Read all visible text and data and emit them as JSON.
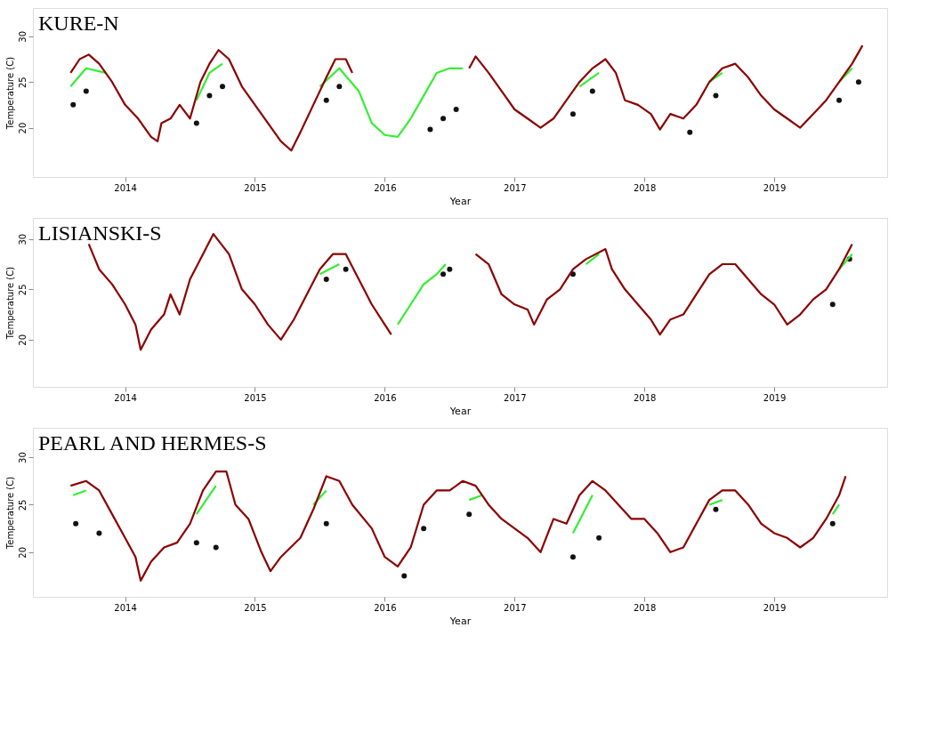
{
  "chart_data": [
    {
      "type": "line",
      "title": "KURE-N",
      "xlabel": "Year",
      "ylabel": "Temperature (C)",
      "xlim": [
        2013.29,
        2019.87
      ],
      "xticks": [
        2014,
        2015,
        2016,
        2017,
        2018,
        2019
      ],
      "ylim": [
        14.6,
        33.1
      ],
      "yticks": [
        20,
        25,
        30
      ],
      "grid": false,
      "legend": false,
      "series": [
        {
          "type": "scatter",
          "marker": "circle",
          "color": "#111111",
          "x": [
            2013.6,
            2013.7,
            2014.55,
            2014.65,
            2014.75,
            2015.55,
            2015.65,
            2016.35,
            2016.45,
            2016.55,
            2017.45,
            2017.6,
            2018.35,
            2018.55,
            2019.5,
            2019.65
          ],
          "values": [
            22.5,
            24,
            20.5,
            23.5,
            24.5,
            23,
            24.5,
            19.8,
            21,
            22,
            21.5,
            24,
            19.5,
            23.5,
            23,
            25
          ]
        },
        {
          "type": "line",
          "color": "#33ee33",
          "x": [
            2013.58,
            2013.7,
            2013.85,
            2014.2,
            2014.55,
            2014.65,
            2014.75,
            2015.1,
            2015.5,
            2015.65,
            2015.8,
            2015.9,
            2016.0,
            2016.1,
            2016.2,
            2016.3,
            2016.4,
            2016.5,
            2016.6,
            2017.0,
            2017.5,
            2017.65,
            2018.0,
            2018.5,
            2018.6,
            2019.0,
            2019.5,
            2019.6
          ],
          "values": [
            24.5,
            26.5,
            26,
            null,
            23,
            26,
            27,
            null,
            24.5,
            26.5,
            24,
            20.5,
            19.2,
            19,
            21,
            23.5,
            26,
            26.5,
            26.5,
            null,
            24.5,
            26,
            null,
            25,
            26,
            null,
            25,
            26.5
          ]
        },
        {
          "type": "line",
          "color": "#8b0000",
          "x": [
            2013.58,
            2013.65,
            2013.72,
            2013.8,
            2013.9,
            2014.0,
            2014.1,
            2014.2,
            2014.25,
            2014.28,
            2014.35,
            2014.42,
            2014.5,
            2014.58,
            2014.65,
            2014.72,
            2014.8,
            2014.9,
            2015.0,
            2015.1,
            2015.2,
            2015.28,
            2015.35,
            2015.45,
            2015.55,
            2015.62,
            2015.7,
            2015.75,
            2016.2,
            2016.65,
            2016.7,
            2016.8,
            2016.9,
            2017.0,
            2017.1,
            2017.2,
            2017.3,
            2017.4,
            2017.5,
            2017.6,
            2017.7,
            2017.78,
            2017.85,
            2017.95,
            2018.05,
            2018.12,
            2018.2,
            2018.3,
            2018.4,
            2018.5,
            2018.6,
            2018.7,
            2018.8,
            2018.9,
            2019.0,
            2019.1,
            2019.2,
            2019.3,
            2019.4,
            2019.5,
            2019.6,
            2019.68
          ],
          "values": [
            26,
            27.5,
            28,
            27,
            25,
            22.5,
            21,
            19,
            18.5,
            20.5,
            21,
            22.5,
            21,
            25,
            27,
            28.5,
            27.5,
            24.5,
            22.5,
            20.5,
            18.5,
            17.5,
            19.5,
            22.5,
            25.5,
            27.5,
            27.5,
            26,
            null,
            26.5,
            27.8,
            26,
            24,
            22,
            21,
            20,
            21,
            23,
            25,
            26.5,
            27.5,
            26,
            23,
            22.5,
            21.5,
            19.8,
            21.5,
            21,
            22.5,
            25,
            26.5,
            27,
            25.5,
            23.5,
            22,
            21,
            20,
            21.5,
            23,
            25,
            27,
            29
          ]
        }
      ]
    },
    {
      "type": "line",
      "title": "LISIANSKI-S",
      "xlabel": "Year",
      "ylabel": "Temperature (C)",
      "xlim": [
        2013.29,
        2019.87
      ],
      "xticks": [
        2014,
        2015,
        2016,
        2017,
        2018,
        2019
      ],
      "ylim": [
        15.3,
        32.1
      ],
      "yticks": [
        20,
        25,
        30
      ],
      "grid": false,
      "legend": false,
      "series": [
        {
          "type": "scatter",
          "marker": "circle",
          "color": "#111111",
          "x": [
            2015.55,
            2015.7,
            2016.45,
            2016.5,
            2017.45,
            2019.45,
            2019.58
          ],
          "values": [
            26,
            27,
            26.5,
            27,
            26.5,
            23.5,
            28
          ]
        },
        {
          "type": "line",
          "color": "#33ee33",
          "x": [
            2015.5,
            2015.65,
            2015.9,
            2016.1,
            2016.2,
            2016.3,
            2016.4,
            2016.47,
            2016.9,
            2017.55,
            2017.65,
            2018.5,
            2019.5,
            2019.6
          ],
          "values": [
            26.5,
            27.5,
            null,
            21.5,
            23.5,
            25.5,
            26.5,
            27.5,
            null,
            27.5,
            28.5,
            null,
            27,
            28.5
          ]
        },
        {
          "type": "line",
          "color": "#8b0000",
          "x": [
            2013.72,
            2013.8,
            2013.9,
            2014.0,
            2014.08,
            2014.12,
            2014.2,
            2014.3,
            2014.35,
            2014.42,
            2014.5,
            2014.6,
            2014.68,
            2014.8,
            2014.9,
            2015.0,
            2015.1,
            2015.2,
            2015.3,
            2015.4,
            2015.5,
            2015.6,
            2015.7,
            2015.8,
            2015.9,
            2016.0,
            2016.05,
            2016.4,
            2016.7,
            2016.8,
            2016.9,
            2017.0,
            2017.1,
            2017.15,
            2017.25,
            2017.35,
            2017.45,
            2017.55,
            2017.7,
            2017.75,
            2017.85,
            2017.95,
            2018.05,
            2018.12,
            2018.2,
            2018.3,
            2018.4,
            2018.5,
            2018.6,
            2018.7,
            2018.8,
            2018.9,
            2019.0,
            2019.1,
            2019.2,
            2019.3,
            2019.4,
            2019.5,
            2019.6
          ],
          "values": [
            29.5,
            27,
            25.5,
            23.5,
            21.5,
            19,
            21,
            22.5,
            24.5,
            22.5,
            26,
            28.5,
            30.5,
            28.5,
            25,
            23.5,
            21.5,
            20,
            22,
            24.5,
            27,
            28.5,
            28.5,
            26,
            23.5,
            21.5,
            20.5,
            null,
            28.5,
            27.5,
            24.5,
            23.5,
            23,
            21.5,
            24,
            25,
            27,
            28,
            29,
            27,
            25,
            23.5,
            22,
            20.5,
            22,
            22.5,
            24.5,
            26.5,
            27.5,
            27.5,
            26,
            24.5,
            23.5,
            21.5,
            22.5,
            24,
            25,
            27,
            29.5
          ]
        }
      ]
    },
    {
      "type": "line",
      "title": "PEARL AND HERMES-S",
      "xlabel": "Year",
      "ylabel": "Temperature (C)",
      "xlim": [
        2013.29,
        2019.87
      ],
      "xticks": [
        2014,
        2015,
        2016,
        2017,
        2018,
        2019
      ],
      "ylim": [
        15.3,
        33.1
      ],
      "yticks": [
        20,
        25,
        30
      ],
      "grid": false,
      "legend": false,
      "series": [
        {
          "type": "scatter",
          "marker": "circle",
          "color": "#111111",
          "x": [
            2013.62,
            2013.8,
            2014.55,
            2014.7,
            2015.55,
            2016.15,
            2016.3,
            2016.65,
            2017.45,
            2017.65,
            2018.55,
            2019.45
          ],
          "values": [
            23,
            22,
            21,
            20.5,
            23,
            17.5,
            22.5,
            24,
            19.5,
            21.5,
            24.5,
            23
          ]
        },
        {
          "type": "line",
          "color": "#33ee33",
          "x": [
            2013.6,
            2013.7,
            2014.0,
            2014.55,
            2014.7,
            2015.0,
            2015.45,
            2015.55,
            2016.0,
            2016.65,
            2016.75,
            2017.0,
            2017.45,
            2017.6,
            2018.0,
            2018.5,
            2018.6,
            2019.0,
            2019.45,
            2019.5
          ],
          "values": [
            26,
            26.5,
            null,
            24,
            27,
            null,
            25,
            26.5,
            null,
            25.5,
            26,
            null,
            22,
            26,
            null,
            25,
            25.5,
            null,
            24,
            25
          ]
        },
        {
          "type": "line",
          "color": "#8b0000",
          "x": [
            2013.58,
            2013.7,
            2013.8,
            2013.9,
            2014.0,
            2014.08,
            2014.12,
            2014.2,
            2014.3,
            2014.4,
            2014.5,
            2014.6,
            2014.7,
            2014.78,
            2014.85,
            2014.95,
            2015.05,
            2015.12,
            2015.2,
            2015.35,
            2015.45,
            2015.55,
            2015.65,
            2015.75,
            2015.9,
            2016.0,
            2016.1,
            2016.2,
            2016.3,
            2016.4,
            2016.5,
            2016.6,
            2016.7,
            2016.8,
            2016.9,
            2017.0,
            2017.1,
            2017.2,
            2017.3,
            2017.4,
            2017.5,
            2017.6,
            2017.7,
            2017.8,
            2017.9,
            2018.0,
            2018.1,
            2018.2,
            2018.3,
            2018.4,
            2018.5,
            2018.6,
            2018.7,
            2018.8,
            2018.9,
            2019.0,
            2019.1,
            2019.2,
            2019.3,
            2019.4,
            2019.5,
            2019.55
          ],
          "values": [
            27,
            27.5,
            26.5,
            24,
            21.5,
            19.5,
            17,
            19,
            20.5,
            21,
            23,
            26.5,
            28.5,
            28.5,
            25,
            23.5,
            20,
            18,
            19.5,
            21.5,
            24.5,
            28,
            27.5,
            25,
            22.5,
            19.5,
            18.5,
            20.5,
            25,
            26.5,
            26.5,
            27.5,
            27,
            25,
            23.5,
            22.5,
            21.5,
            20,
            23.5,
            23,
            26,
            27.5,
            26.5,
            25,
            23.5,
            23.5,
            22,
            20,
            20.5,
            23,
            25.5,
            26.5,
            26.5,
            25,
            23,
            22,
            21.5,
            20.5,
            21.5,
            23.5,
            26,
            28
          ]
        }
      ]
    }
  ]
}
